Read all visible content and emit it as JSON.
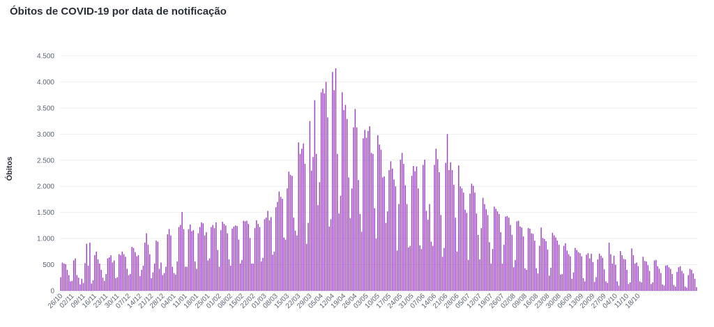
{
  "chart_data": {
    "type": "bar",
    "title": "Óbitos de COVID-19 por data de notificação",
    "xlabel": "",
    "ylabel": "Óbitos",
    "ylim": [
      0,
      4500
    ],
    "y_ticks": [
      0,
      500,
      1000,
      1500,
      2000,
      2500,
      3000,
      3500,
      4000,
      4500
    ],
    "y_tick_labels": [
      "0",
      "500",
      "1.000",
      "1.500",
      "2.000",
      "2.500",
      "3.000",
      "3.500",
      "4.000",
      "4.500"
    ],
    "x_tick_labels": [
      "26/10",
      "02/11",
      "09/11",
      "16/11",
      "23/11",
      "30/11",
      "07/12",
      "14/12",
      "21/12",
      "28/12",
      "04/01",
      "11/01",
      "18/01",
      "25/01",
      "01/02",
      "08/02",
      "15/02",
      "22/02",
      "01/03",
      "08/03",
      "15/03",
      "22/03",
      "29/03",
      "05/04",
      "12/04",
      "19/04",
      "26/04",
      "03/05",
      "10/05",
      "17/05",
      "24/05",
      "31/05",
      "07/06",
      "14/06",
      "21/06",
      "28/06",
      "05/07",
      "12/07",
      "19/07",
      "26/07",
      "02/08",
      "09/08",
      "16/08",
      "23/08",
      "30/08",
      "06/09",
      "13/09",
      "20/09",
      "27/09",
      "04/10",
      "11/10",
      "18/10"
    ],
    "bar_color": "#9b3fc9",
    "values": [
      260,
      540,
      520,
      510,
      400,
      300,
      180,
      190,
      580,
      620,
      300,
      250,
      120,
      230,
      150,
      530,
      900,
      480,
      920,
      140,
      200,
      680,
      750,
      600,
      520,
      400,
      250,
      190,
      320,
      620,
      640,
      680,
      540,
      580,
      240,
      260,
      700,
      680,
      750,
      700,
      650,
      420,
      300,
      320,
      840,
      820,
      740,
      660,
      680,
      280,
      400,
      480,
      920,
      1100,
      880,
      700,
      240,
      350,
      520,
      960,
      940,
      420,
      540,
      300,
      340,
      460,
      1080,
      1180,
      1060,
      460,
      340,
      310,
      560,
      1220,
      1260,
      1510,
      1180,
      460,
      460,
      1180,
      1270,
      1140,
      1160,
      560,
      420,
      1100,
      1220,
      1310,
      1290,
      1060,
      1120,
      580,
      620,
      1220,
      1260,
      1200,
      1310,
      780,
      460,
      1160,
      1320,
      1280,
      1250,
      1100,
      600,
      480,
      1190,
      1230,
      1250,
      1240,
      980,
      520,
      590,
      1340,
      1330,
      1340,
      1280,
      1010,
      520,
      520,
      1200,
      1350,
      1280,
      1220,
      560,
      630,
      1370,
      1400,
      1530,
      1350,
      1410,
      690,
      750,
      1600,
      1700,
      1900,
      1800,
      1760,
      1020,
      980,
      1960,
      2280,
      2220,
      2200,
      1400,
      1150,
      1060,
      2840,
      2620,
      2720,
      2820,
      2430,
      900,
      1300,
      3250,
      2300,
      2560,
      3650,
      2620,
      1640,
      2080,
      3800,
      3870,
      3780,
      4000,
      3320,
      1230,
      1370,
      4190,
      3840,
      4260,
      2620,
      1480,
      1820,
      3800,
      3460,
      3560,
      3290,
      2170,
      1390,
      1960,
      3130,
      3480,
      3130,
      2120,
      1470,
      1130,
      2920,
      3080,
      2930,
      3060,
      3150,
      2640,
      2620,
      1580,
      1000,
      2980,
      2800,
      2700,
      2170,
      2190,
      1300,
      1520,
      2310,
      2480,
      2340,
      2130,
      2000,
      770,
      1660,
      2510,
      2640,
      2430,
      2020,
      1660,
      830,
      860,
      2200,
      2390,
      2290,
      2380,
      1960,
      870,
      800,
      2410,
      2510,
      1530,
      1360,
      1660,
      940,
      860,
      2410,
      2720,
      2520,
      2270,
      1450,
      650,
      820,
      2450,
      3000,
      2310,
      2460,
      2310,
      2030,
      1400,
      750,
      2400,
      2000,
      1960,
      1880,
      1550,
      1490,
      590,
      1860,
      2050,
      2010,
      1880,
      1480,
      1070,
      600,
      1200,
      1780,
      1660,
      1560,
      1450,
      930,
      520,
      800,
      1610,
      1570,
      1520,
      1470,
      1120,
      520,
      880,
      1420,
      1430,
      1400,
      1260,
      1070,
      450,
      590,
      1330,
      1340,
      1230,
      1210,
      1040,
      430,
      400,
      1200,
      1190,
      1100,
      1090,
      960,
      430,
      330,
      860,
      1210,
      1010,
      990,
      950,
      790,
      290,
      440,
      1110,
      1060,
      1020,
      960,
      880,
      310,
      320,
      860,
      910,
      770,
      700,
      660,
      230,
      350,
      820,
      780,
      740,
      720,
      660,
      240,
      180,
      690,
      720,
      620,
      710,
      550,
      170,
      260,
      600,
      710,
      670,
      630,
      410,
      180,
      150,
      920,
      700,
      520,
      670,
      500,
      180,
      100,
      760,
      680,
      610,
      600,
      400,
      130,
      160,
      810,
      680,
      520,
      540,
      470,
      180,
      160,
      650,
      570,
      560,
      490,
      380,
      130,
      160,
      580,
      590,
      470,
      420,
      340,
      120,
      100,
      480,
      490,
      450,
      420,
      320,
      110,
      80,
      360,
      450,
      470,
      380,
      330,
      80,
      60,
      300,
      420,
      400,
      330,
      230,
      70
    ]
  }
}
